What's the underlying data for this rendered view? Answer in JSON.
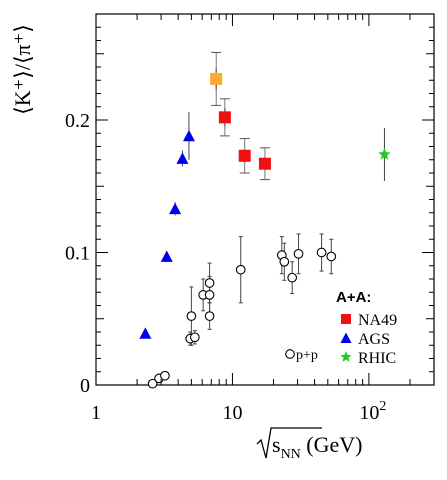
{
  "chart_data": {
    "type": "scatter",
    "title": "",
    "xlabel": {
      "root": "s",
      "sub": "NN",
      "unit": " (GeV)"
    },
    "ylabel": "⟨K⁺⟩/⟨π⁺⟩",
    "x_scale": "log",
    "xlim": [
      1,
      300
    ],
    "ylim": [
      0,
      0.28
    ],
    "grid": false,
    "legend_placement": "bottom-right",
    "legend_title": "A+A:",
    "x_ticks": [
      {
        "label": "1",
        "value": 1
      },
      {
        "label": "10",
        "value": 10
      },
      {
        "label": "10",
        "sup": "2",
        "value": 100
      }
    ],
    "y_ticks": [
      {
        "label": "0",
        "value": 0
      },
      {
        "label": "0.1",
        "value": 0.1
      },
      {
        "label": "0.2",
        "value": 0.2
      }
    ],
    "series": [
      {
        "name": "NA49",
        "marker": "square",
        "color": "#ee1111",
        "in_legend": true,
        "points": [
          {
            "x": 8.8,
            "y": 0.202,
            "err": 0.007,
            "sys": 0.014
          },
          {
            "x": 12.3,
            "y": 0.173,
            "err": 0.005,
            "sys": 0.013
          },
          {
            "x": 17.3,
            "y": 0.167,
            "err": 0.004,
            "sys": 0.012
          }
        ]
      },
      {
        "name": "",
        "marker": "square",
        "color": "#ffaa33",
        "in_legend": false,
        "points": [
          {
            "x": 7.6,
            "y": 0.231,
            "err": 0.008,
            "sys": 0.02
          }
        ]
      },
      {
        "name": "AGS",
        "marker": "triangle",
        "color": "#0000ee",
        "in_legend": true,
        "points": [
          {
            "x": 2.3,
            "y": 0.039,
            "err": 0.003
          },
          {
            "x": 3.3,
            "y": 0.097,
            "err": 0.004
          },
          {
            "x": 3.8,
            "y": 0.133,
            "err": 0.005
          },
          {
            "x": 4.3,
            "y": 0.171,
            "err": 0.006
          },
          {
            "x": 4.8,
            "y": 0.188,
            "err": 0.018
          }
        ]
      },
      {
        "name": "RHIC",
        "marker": "star",
        "color": "#22cc22",
        "in_legend": true,
        "points": [
          {
            "x": 130,
            "y": 0.174,
            "err": 0.02
          }
        ]
      },
      {
        "name": "p+p",
        "marker": "open-circle",
        "color": "#000000",
        "in_legend": true,
        "points": [
          {
            "x": 2.6,
            "y": 0.001,
            "err": 0.002
          },
          {
            "x": 2.9,
            "y": 0.005,
            "err": 0.002
          },
          {
            "x": 3.2,
            "y": 0.007,
            "err": 0.002
          },
          {
            "x": 4.9,
            "y": 0.035,
            "err": 0.005
          },
          {
            "x": 5.0,
            "y": 0.052,
            "err": 0.022
          },
          {
            "x": 5.3,
            "y": 0.036,
            "err": 0.005
          },
          {
            "x": 6.1,
            "y": 0.068,
            "err": 0.012
          },
          {
            "x": 6.8,
            "y": 0.052,
            "err": 0.01
          },
          {
            "x": 6.8,
            "y": 0.068,
            "err": 0.014
          },
          {
            "x": 6.8,
            "y": 0.077,
            "err": 0.015
          },
          {
            "x": 11.5,
            "y": 0.087,
            "err": 0.025
          },
          {
            "x": 23.0,
            "y": 0.098,
            "err": 0.014
          },
          {
            "x": 24.0,
            "y": 0.093,
            "err": 0.014
          },
          {
            "x": 27.4,
            "y": 0.081,
            "err": 0.012
          },
          {
            "x": 30.5,
            "y": 0.099,
            "err": 0.015
          },
          {
            "x": 45.0,
            "y": 0.1,
            "err": 0.014
          },
          {
            "x": 53.0,
            "y": 0.097,
            "err": 0.013
          }
        ]
      }
    ]
  }
}
